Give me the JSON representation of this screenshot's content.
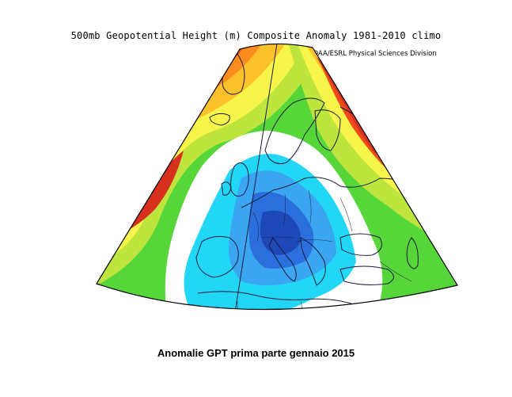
{
  "chart_title": "500mb Geopotential Height (m) Composite Anomaly 1981-2010 climo",
  "source_label": "NOAA/ESRL Physical Sciences Division",
  "caption": "Anomalie GPT prima parte gennaio 2015",
  "colors": {
    "dark_red": "#d7301f",
    "red": "#f04a1a",
    "orange": "#fb8c1e",
    "yellow_orange": "#fdc12c",
    "yellow": "#f8f54a",
    "yellow_green": "#bde53d",
    "green": "#57d63a",
    "white": "#ffffff",
    "cyan": "#22d6f5",
    "light_blue": "#3aa6f2",
    "blue": "#2a6fdc",
    "dark_blue": "#1e48b8",
    "outline": "#000000",
    "coast": "#1a1a3a"
  }
}
